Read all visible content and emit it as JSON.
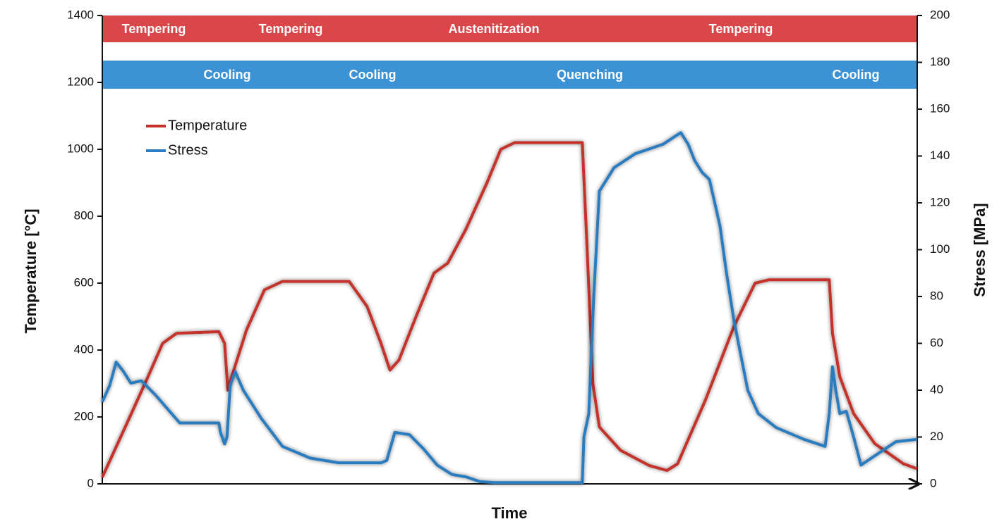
{
  "chart_data": {
    "type": "line",
    "x_label": "Time",
    "y_label": "Temperature [°C]",
    "y2_label": "Stress [MPa]",
    "xlim": [
      0,
      100
    ],
    "ylim": [
      0,
      1400
    ],
    "yticks": [
      0,
      200,
      400,
      600,
      800,
      1000,
      1200,
      1400
    ],
    "y2lim": [
      0,
      200
    ],
    "y2ticks": [
      0,
      20,
      40,
      60,
      80,
      100,
      120,
      140,
      160,
      180,
      200
    ],
    "legend": "upper left",
    "bands": [
      {
        "color": "#d9474a",
        "labels": [
          "Tempering",
          "Tempering",
          "Austenitization",
          "Tempering"
        ]
      },
      {
        "color": "#3b93d6",
        "labels": [
          "Cooling",
          "Cooling",
          "Quenching",
          "Cooling"
        ]
      }
    ],
    "series": [
      {
        "name": "Temperature",
        "color": "#c4302b",
        "axis": "y",
        "x": [
          0,
          3.0,
          5.6,
          7.4,
          9.1,
          14.3,
          15.0,
          15.4,
          16.0,
          17.7,
          19.9,
          22.1,
          30.3,
          32.5,
          34.2,
          35.3,
          36.4,
          38.5,
          40.7,
          42.4,
          44.6,
          47.2,
          48.9,
          50.6,
          58.9,
          59.5,
          60.2,
          61.0,
          63.6,
          67.1,
          69.3,
          70.6,
          74.0,
          77.5,
          80.1,
          81.8,
          89.2,
          89.6,
          90.5,
          92.2,
          94.8,
          98.3,
          100
        ],
        "values": [
          20,
          180,
          320,
          420,
          450,
          455,
          420,
          280,
          330,
          460,
          580,
          605,
          605,
          530,
          420,
          340,
          370,
          500,
          630,
          660,
          760,
          900,
          1000,
          1020,
          1020,
          700,
          300,
          170,
          100,
          55,
          40,
          60,
          250,
          470,
          600,
          610,
          610,
          450,
          320,
          210,
          120,
          60,
          45
        ]
      },
      {
        "name": "Stress",
        "color": "#2b7cc0",
        "axis": "y2",
        "x": [
          0,
          0.9,
          1.7,
          2.6,
          3.5,
          4.8,
          6.5,
          9.5,
          14.3,
          14.5,
          15.0,
          15.3,
          15.7,
          16.3,
          17.3,
          19.5,
          22.1,
          25.5,
          29.0,
          34.2,
          34.9,
          35.9,
          37.7,
          39.4,
          41.1,
          42.9,
          44.6,
          46.3,
          48.1,
          58.9,
          59.1,
          59.7,
          60.3,
          61.0,
          62.8,
          65.4,
          68.8,
          70.1,
          71.0,
          71.9,
          72.7,
          73.6,
          74.5,
          75.8,
          76.6,
          77.5,
          79.2,
          80.5,
          82.7,
          86.1,
          88.7,
          89.2,
          89.6,
          90.0,
          90.5,
          91.3,
          92.2,
          93.1,
          94.8,
          97.4,
          100
        ],
        "values": [
          35,
          42,
          52,
          48,
          43,
          44,
          38,
          26,
          26,
          22,
          17,
          20,
          42,
          48,
          40,
          28,
          16,
          11,
          9,
          9,
          10,
          22,
          21,
          15,
          8,
          4,
          3,
          1,
          0.5,
          0.5,
          20,
          30,
          80,
          125,
          135,
          141,
          145,
          148,
          150,
          145,
          138,
          133,
          130,
          110,
          90,
          70,
          40,
          30,
          24,
          19,
          16,
          30,
          50,
          40,
          30,
          31,
          20,
          8,
          12,
          18,
          19
        ]
      }
    ]
  }
}
